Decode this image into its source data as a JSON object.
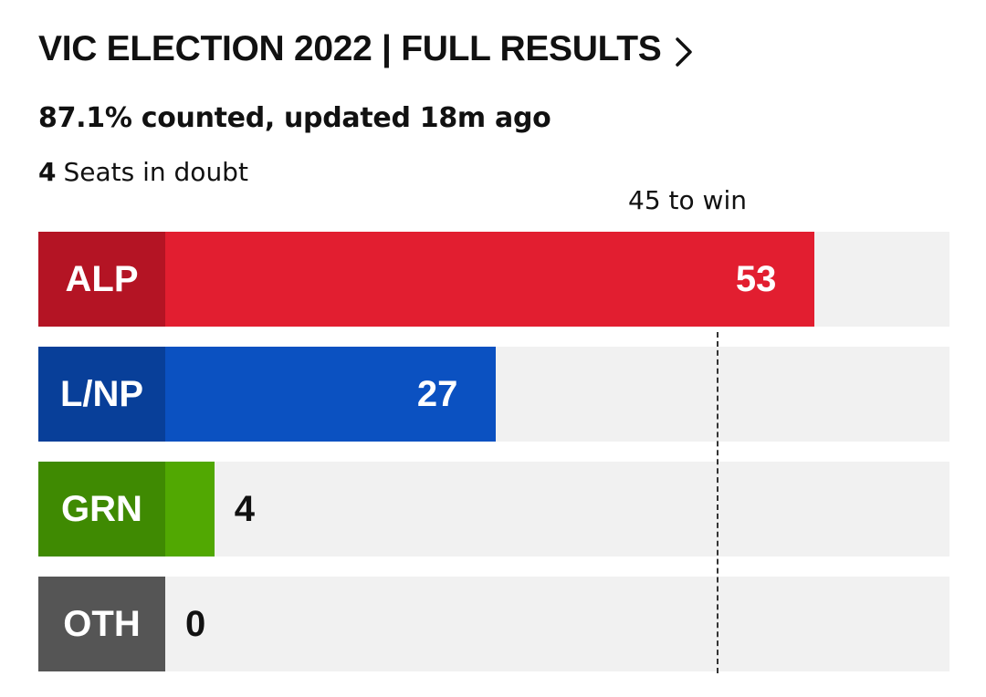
{
  "header": {
    "title": "VIC ELECTION 2022 | FULL RESULTS",
    "chevron_icon": "chevron-right-icon"
  },
  "status": {
    "counted": "87.1% counted,",
    "updated": "updated 18m ago",
    "seats_in_doubt_count": "4",
    "seats_in_doubt_label": "Seats in doubt"
  },
  "chart_data": {
    "type": "bar",
    "orientation": "horizontal",
    "categories": [
      "ALP",
      "L/NP",
      "GRN",
      "OTH"
    ],
    "values": [
      53,
      27,
      4,
      0
    ],
    "colors": [
      "#e21e30",
      "#0b51c1",
      "#51a802",
      "#6b6b6b"
    ],
    "label_colors": [
      "#b41424",
      "#083f99",
      "#3f8a02",
      "#555555"
    ],
    "threshold": 45,
    "threshold_label": "45 to win",
    "xlim": [
      0,
      64
    ]
  }
}
